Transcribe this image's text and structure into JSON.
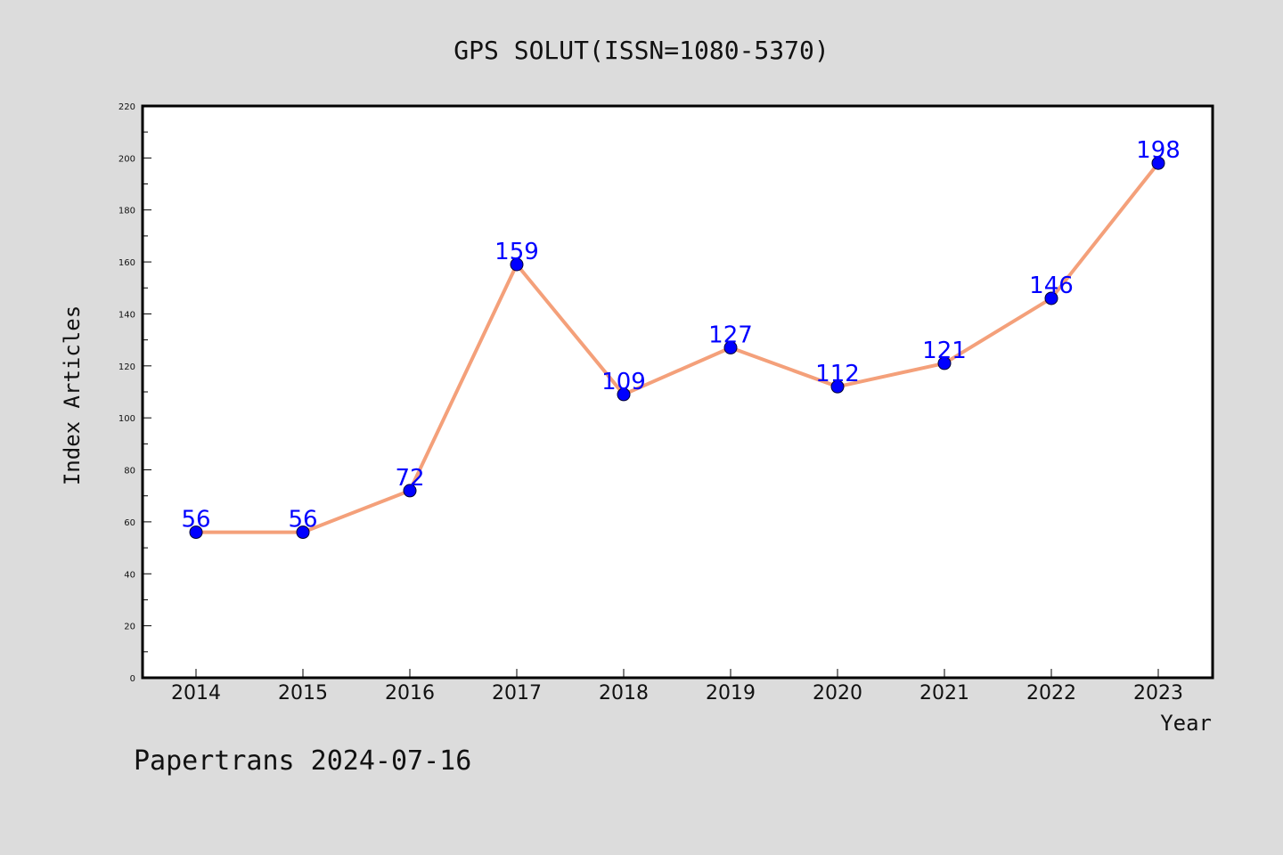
{
  "chart_data": {
    "type": "line",
    "title": "GPS SOLUT(ISSN=1080-5370)",
    "xlabel": "Year",
    "ylabel": "Index Articles",
    "categories": [
      "2014",
      "2015",
      "2016",
      "2017",
      "2018",
      "2019",
      "2020",
      "2021",
      "2022",
      "2023"
    ],
    "series": [
      {
        "values": [
          56,
          56,
          72,
          159,
          109,
          127,
          112,
          121,
          146,
          198
        ],
        "line_color": "#f4a07a",
        "marker_color": "#0000ff"
      }
    ],
    "data_labels": [
      "56",
      "56",
      "72",
      "159",
      "109",
      "127",
      "112",
      "121",
      "146",
      "198"
    ],
    "ylim": [
      0,
      220
    ],
    "yticks": [
      "0",
      "20",
      "40",
      "60",
      "80",
      "100",
      "120",
      "140",
      "160",
      "180",
      "200",
      "220"
    ],
    "grid": false,
    "legend": "none",
    "label_color": "#0000ff"
  },
  "footer": {
    "watermark": "Papertrans 2024-07-16"
  }
}
